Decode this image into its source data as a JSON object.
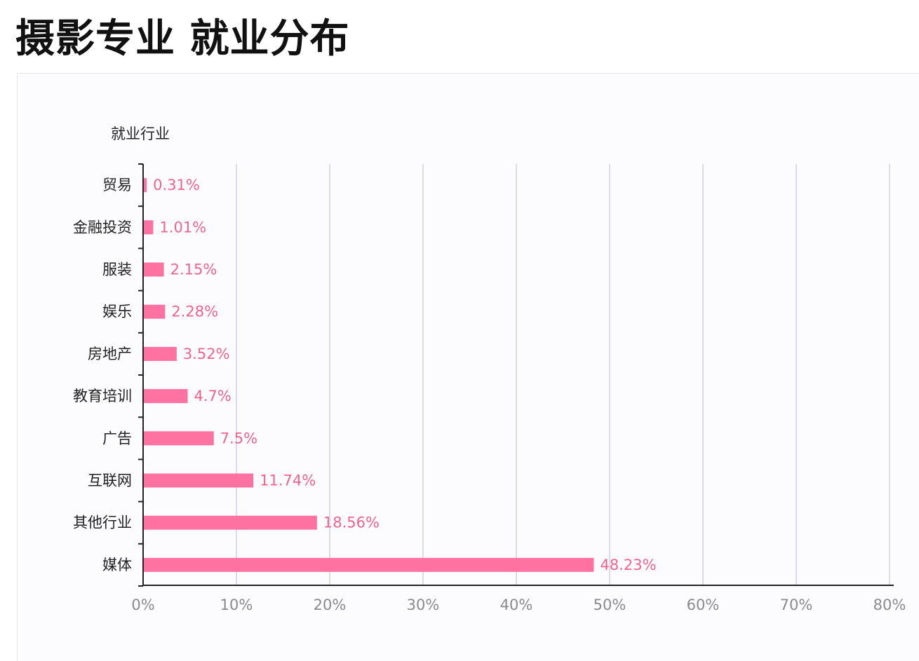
{
  "title": "摄影专业 就业分布",
  "colors": {
    "bar": "#fd72a0",
    "data_label": "#f0648c",
    "grid": "#c5c8d8",
    "axis": "#222222",
    "panel_background": "#fcfcfe"
  },
  "chart_data": {
    "type": "bar",
    "orientation": "horizontal",
    "title": "摄影专业 就业分布",
    "ylabel": "就业行业",
    "xlabel": "",
    "categories": [
      "贸易",
      "金融投资",
      "服装",
      "娱乐",
      "房地产",
      "教育培训",
      "广告",
      "互联网",
      "其他行业",
      "媒体"
    ],
    "values": [
      0.31,
      1.01,
      2.15,
      2.28,
      3.52,
      4.7,
      7.5,
      11.74,
      18.56,
      48.23
    ],
    "value_labels": [
      "0.31%",
      "1.01%",
      "2.15%",
      "2.28%",
      "3.52%",
      "4.7%",
      "7.5%",
      "11.74%",
      "18.56%",
      "48.23%"
    ],
    "x_ticks": [
      0,
      10,
      20,
      30,
      40,
      50,
      60,
      70,
      80
    ],
    "x_tick_labels": [
      "0%",
      "10%",
      "20%",
      "30%",
      "40%",
      "50%",
      "60%",
      "70%",
      "80%"
    ],
    "xlim": [
      0,
      80
    ],
    "grid": true,
    "legend": "none",
    "unit": "%"
  }
}
